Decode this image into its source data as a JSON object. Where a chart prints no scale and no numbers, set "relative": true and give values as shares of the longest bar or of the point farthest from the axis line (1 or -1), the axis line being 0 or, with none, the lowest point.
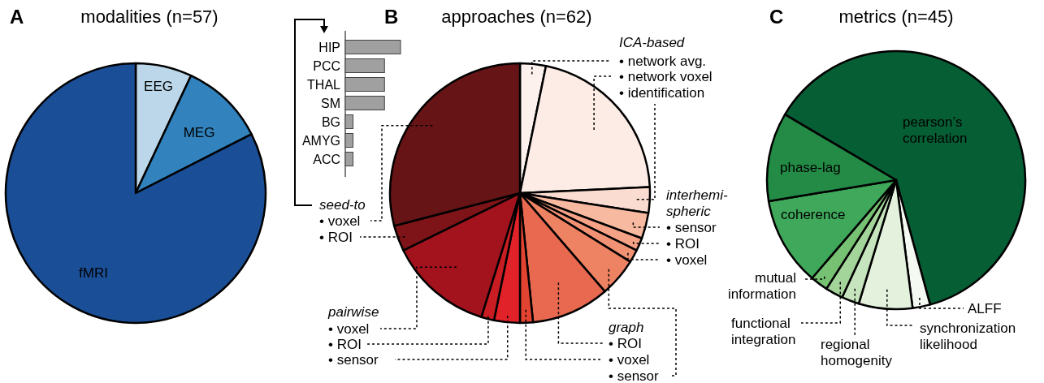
{
  "chart_data": [
    {
      "type": "pie",
      "title": "modalities (n=57)",
      "annotations": [
        "A"
      ],
      "categories": [
        "EEG",
        "MEG",
        "fMRI"
      ],
      "values": [
        7.0,
        10.5,
        82.5
      ],
      "colors": [
        "#bcd7e9",
        "#3182bd",
        "#1a4f97"
      ]
    },
    {
      "type": "bar",
      "orientation": "horizontal",
      "relative": true,
      "categories": [
        "HIP",
        "PCC",
        "THAL",
        "SM",
        "BG",
        "AMYG",
        "ACC"
      ],
      "values": [
        1,
        0.71,
        0.71,
        0.71,
        0.14,
        0.14,
        0.14
      ],
      "color": "#a0a0a0"
    },
    {
      "type": "pie",
      "title": "approaches (n=62)",
      "annotations": [
        "B",
        "ICA-based",
        "interhemi-spheric",
        "graph",
        "pairwise",
        "seed-to"
      ],
      "categories": [
        "• network avg.",
        "• network voxel",
        "• identification",
        "• sensor",
        "• ROI",
        "• voxel",
        "• sensor",
        "• ROI",
        "• voxel",
        "• sensor",
        "• ROI",
        "• voxel",
        "• ROI",
        "• voxel"
      ],
      "values": [
        3.2,
        21.0,
        3.2,
        3.2,
        1.6,
        1.6,
        4.8,
        9.7,
        1.6,
        3.2,
        1.6,
        12.9,
        3.2,
        29.0
      ],
      "colors": [
        "#fdf1ee",
        "#fdece5",
        "#fbdcd0",
        "#f8b9a1",
        "#f5a286",
        "#f29274",
        "#ee8364",
        "#e96950",
        "#e34432",
        "#e12228",
        "#c81d22",
        "#a3131d",
        "#7f1418",
        "#661416"
      ]
    },
    {
      "type": "pie",
      "title": "metrics (n=45)",
      "annotations": [
        "C"
      ],
      "categories": [
        "pearson’s correlation",
        "ALFF",
        "synchronization likelihood",
        "regional homogenity",
        "functional integration",
        "mutual information",
        "coherence",
        "phase-lag"
      ],
      "values": [
        62.2,
        2.2,
        6.7,
        2.2,
        2.2,
        2.2,
        11.1,
        11.1
      ],
      "colors": [
        "#065e35",
        "#f4f9f1",
        "#e3f1dd",
        "#c6e5be",
        "#a3d49a",
        "#76c172",
        "#3fa85b",
        "#238b45"
      ]
    }
  ]
}
